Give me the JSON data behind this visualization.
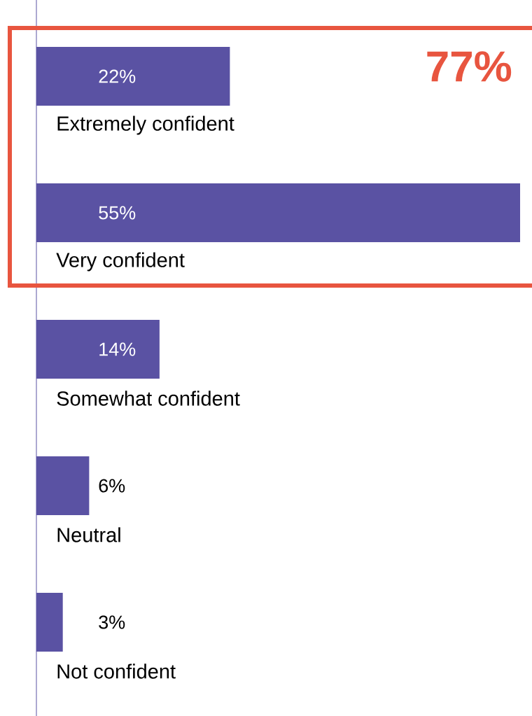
{
  "chart_data": {
    "type": "bar",
    "orientation": "horizontal",
    "categories": [
      "Extremely confident",
      "Very confident",
      "Somewhat confident",
      "Neutral",
      "Not confident"
    ],
    "values": [
      22,
      55,
      14,
      6,
      3
    ],
    "value_labels": [
      "22%",
      "55%",
      "14%",
      "6%",
      "3%"
    ],
    "color": "#5a52a3",
    "xlim": [
      0,
      55
    ],
    "annotations": [
      "77%"
    ]
  }
}
